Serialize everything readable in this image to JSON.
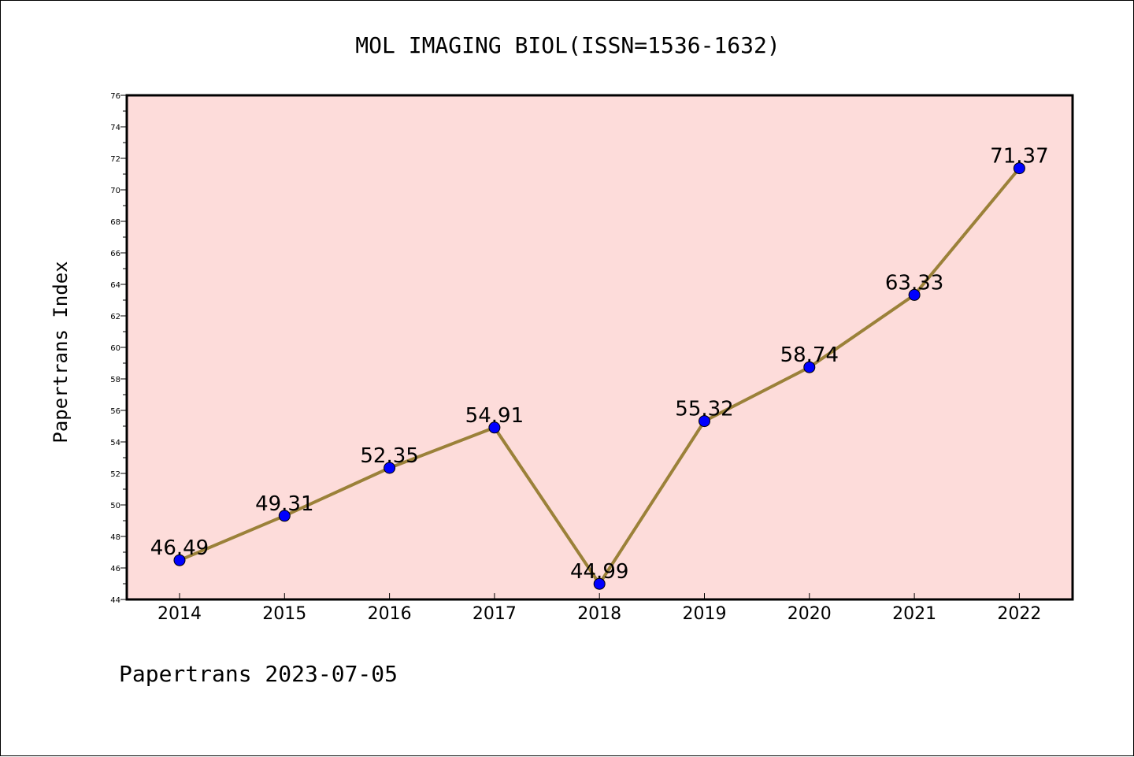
{
  "chart_data": {
    "type": "line",
    "title": "MOL IMAGING BIOL(ISSN=1536-1632)",
    "xlabel": "",
    "ylabel": "Papertrans Index",
    "categories": [
      "2014",
      "2015",
      "2016",
      "2017",
      "2018",
      "2019",
      "2020",
      "2021",
      "2022"
    ],
    "series": [
      {
        "values": [
          46.49,
          49.31,
          52.35,
          54.91,
          44.99,
          55.32,
          58.74,
          63.33,
          71.37
        ],
        "labels": [
          "46.49",
          "49.31",
          "52.35",
          "54.91",
          "44.99",
          "55.32",
          "58.74",
          "63.33",
          "71.37"
        ]
      }
    ],
    "ylim": [
      44,
      76
    ],
    "yticks": [
      "44",
      "46",
      "48",
      "50",
      "52",
      "54",
      "56",
      "58",
      "60",
      "62",
      "64",
      "66",
      "68",
      "70",
      "72",
      "74",
      "76"
    ],
    "grid": false,
    "legend": "none",
    "plot_background": "#FDDCDA",
    "line_color": "#9B8139",
    "marker_color": "#0000FF",
    "footer": "Papertrans 2023-07-05"
  }
}
